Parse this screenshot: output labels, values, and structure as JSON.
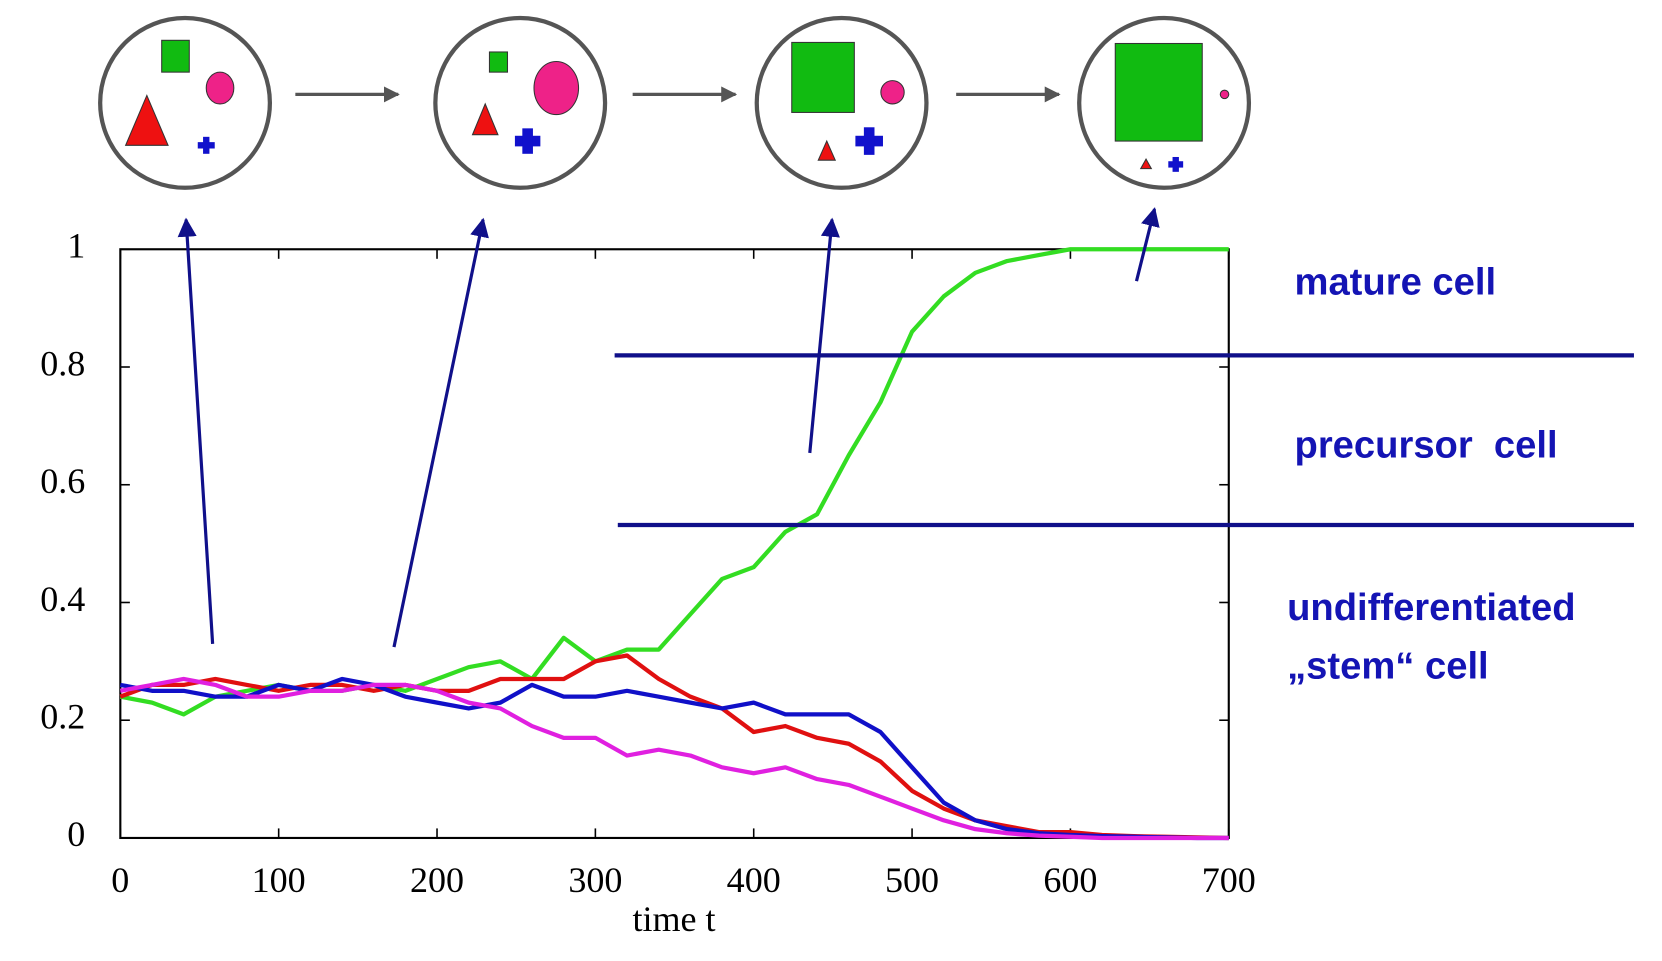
{
  "chart_data": {
    "type": "line",
    "x": [
      0,
      20,
      40,
      60,
      80,
      100,
      120,
      140,
      160,
      180,
      200,
      220,
      240,
      260,
      280,
      300,
      320,
      340,
      360,
      380,
      400,
      420,
      440,
      460,
      480,
      500,
      520,
      540,
      560,
      580,
      600,
      620,
      640,
      660,
      680,
      700
    ],
    "series": [
      {
        "color": "#33dd22",
        "values": [
          0.24,
          0.23,
          0.21,
          0.24,
          0.25,
          0.26,
          0.25,
          0.25,
          0.26,
          0.25,
          0.27,
          0.29,
          0.3,
          0.27,
          0.34,
          0.3,
          0.32,
          0.32,
          0.38,
          0.44,
          0.46,
          0.52,
          0.55,
          0.65,
          0.74,
          0.86,
          0.92,
          0.96,
          0.98,
          0.99,
          1.0,
          1.0,
          1.0,
          1.0,
          1.0,
          1.0
        ]
      },
      {
        "color": "#e01010",
        "values": [
          0.24,
          0.26,
          0.26,
          0.27,
          0.26,
          0.25,
          0.26,
          0.26,
          0.25,
          0.26,
          0.25,
          0.25,
          0.27,
          0.27,
          0.27,
          0.3,
          0.31,
          0.27,
          0.24,
          0.22,
          0.18,
          0.19,
          0.17,
          0.16,
          0.13,
          0.08,
          0.05,
          0.03,
          0.02,
          0.01,
          0.01,
          0.005,
          0.003,
          0.002,
          0.001,
          0
        ]
      },
      {
        "color": "#1010c8",
        "values": [
          0.26,
          0.25,
          0.25,
          0.24,
          0.24,
          0.26,
          0.25,
          0.27,
          0.26,
          0.24,
          0.23,
          0.22,
          0.23,
          0.26,
          0.24,
          0.24,
          0.25,
          0.24,
          0.23,
          0.22,
          0.23,
          0.21,
          0.21,
          0.21,
          0.18,
          0.12,
          0.06,
          0.03,
          0.015,
          0.008,
          0.005,
          0.003,
          0.002,
          0.001,
          0,
          0
        ]
      },
      {
        "color": "#e020e0",
        "values": [
          0.25,
          0.26,
          0.27,
          0.26,
          0.24,
          0.24,
          0.25,
          0.25,
          0.26,
          0.26,
          0.25,
          0.23,
          0.22,
          0.19,
          0.17,
          0.17,
          0.14,
          0.15,
          0.14,
          0.12,
          0.11,
          0.12,
          0.1,
          0.09,
          0.07,
          0.05,
          0.03,
          0.015,
          0.008,
          0.004,
          0.002,
          0,
          0,
          0,
          0,
          0
        ]
      }
    ],
    "xlim": [
      0,
      700
    ],
    "xticks": [
      0,
      100,
      200,
      300,
      400,
      500,
      600,
      700
    ],
    "ylim": [
      0,
      1
    ],
    "yticks": [
      0,
      0.2,
      0.4,
      0.6,
      0.8,
      1
    ],
    "xlabel": "time t",
    "annotations": [
      "mature cell",
      "precursor  cell",
      "undifferentiated",
      "„stem“ cell"
    ]
  }
}
